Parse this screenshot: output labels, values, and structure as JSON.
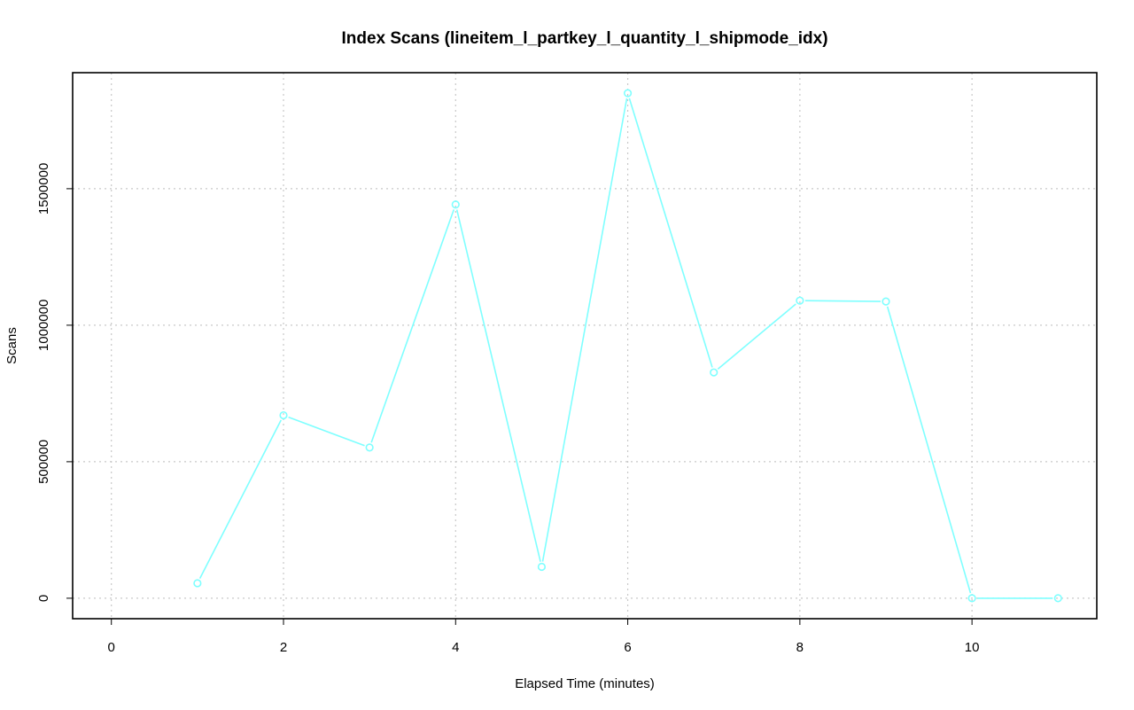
{
  "chart_data": {
    "type": "line",
    "title": "Index Scans (lineitem_l_partkey_l_quantity_l_shipmode_idx)",
    "xlabel": "Elapsed Time (minutes)",
    "ylabel": "Scans",
    "xlim": [
      -0.45,
      11.45
    ],
    "ylim": [
      -75000,
      1925000
    ],
    "x_ticks": [
      0,
      2,
      4,
      6,
      8,
      10
    ],
    "y_ticks": [
      0,
      500000,
      1000000,
      1500000
    ],
    "x_tick_labels": [
      "0",
      "2",
      "4",
      "6",
      "8",
      "10"
    ],
    "y_tick_labels": [
      "0",
      "500000",
      "1000000",
      "1500000"
    ],
    "grid": true,
    "series": [
      {
        "color": "#7fffff",
        "marker": "circle",
        "x": [
          1,
          2,
          3,
          4,
          5,
          6,
          7,
          8,
          9,
          10,
          11
        ],
        "y": [
          55000,
          670000,
          552000,
          1442000,
          115000,
          1850000,
          827000,
          1090000,
          1087000,
          0,
          0
        ]
      }
    ]
  }
}
